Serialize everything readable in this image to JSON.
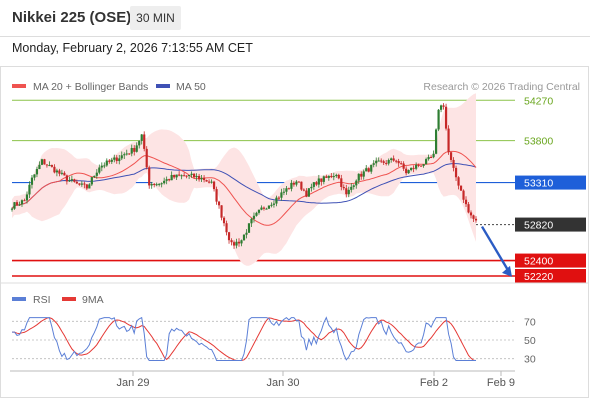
{
  "header": {
    "title": "Nikkei 225 (OSE)",
    "timeframe": "30 MIN",
    "datetime": "Monday, February 2, 2026 7:13:55 AM CET"
  },
  "legend": {
    "ma20_label": "MA 20 + Bollinger Bands",
    "ma50_label": "MA 50",
    "credit": "Research © 2026 Trading Central"
  },
  "rsi_legend": {
    "rsi_label": "RSI",
    "ma9_label": "9MA"
  },
  "colors": {
    "candle_up": "#2e7d32",
    "candle_down": "#c62828",
    "ma20": "#ef5350",
    "ma50": "#3f51b5",
    "bollinger_fill": "#fde4e4",
    "resistance": "#8bc34a",
    "pivot": "#1e5fd9",
    "support": "#e01010",
    "rsi": "#5b7fd6",
    "rsi_ma9": "#e53935"
  },
  "chart_data": [
    {
      "type": "candlestick",
      "title": "Nikkei 225 (OSE)",
      "interval": "30 MIN",
      "ylim": [
        52150,
        54320
      ],
      "x_ticks": [
        "Jan 29",
        "Jan 30",
        "Feb 2",
        "Feb 9"
      ],
      "series": [
        {
          "name": "MA 20 + Bollinger Bands"
        },
        {
          "name": "MA 50"
        }
      ],
      "levels": [
        {
          "kind": "resistance",
          "value": 54270,
          "label": "54270"
        },
        {
          "kind": "resistance",
          "value": 53800,
          "label": "53800"
        },
        {
          "kind": "pivot",
          "value": 53310,
          "label": "53310"
        },
        {
          "kind": "last",
          "value": 52820,
          "label": "52820"
        },
        {
          "kind": "support",
          "value": 52400,
          "label": "52400"
        },
        {
          "kind": "support",
          "value": 52220,
          "label": "52220"
        }
      ],
      "forecast": {
        "from": 52820,
        "to": 52350
      }
    },
    {
      "type": "line",
      "title": "",
      "ylim": [
        20,
        80
      ],
      "y_ticks": [
        70,
        50,
        30
      ],
      "series": [
        {
          "name": "RSI"
        },
        {
          "name": "9MA"
        }
      ]
    }
  ]
}
